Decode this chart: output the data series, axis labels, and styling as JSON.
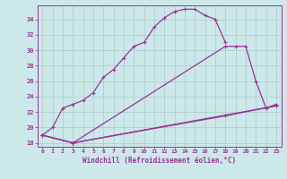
{
  "background_color": "#cce8e8",
  "grid_color": "#aacccc",
  "line_color": "#993399",
  "xlabel": "Windchill (Refroidissement éolien,°C)",
  "ylim": [
    17.5,
    35.8
  ],
  "xlim": [
    -0.5,
    23.5
  ],
  "yticks": [
    18,
    20,
    22,
    24,
    26,
    28,
    30,
    32,
    34
  ],
  "xticks": [
    0,
    1,
    2,
    3,
    4,
    5,
    6,
    7,
    8,
    9,
    10,
    11,
    12,
    13,
    14,
    15,
    16,
    17,
    18,
    19,
    20,
    21,
    22,
    23
  ],
  "series1_x": [
    0,
    1,
    2,
    3,
    4,
    5,
    6,
    7,
    8,
    9,
    10,
    11,
    12,
    13,
    14,
    15,
    16,
    17,
    18
  ],
  "series1_y": [
    19.0,
    20.0,
    22.5,
    23.0,
    23.5,
    24.5,
    26.5,
    27.5,
    29.0,
    30.5,
    31.0,
    33.0,
    34.2,
    35.0,
    35.3,
    35.3,
    34.5,
    34.0,
    31.0
  ],
  "series2_x": [
    0,
    3,
    18,
    19,
    20,
    21,
    22,
    23
  ],
  "series2_y": [
    19.0,
    18.0,
    30.5,
    30.5,
    30.5,
    26.0,
    22.5,
    23.0
  ],
  "series3_x": [
    0,
    3,
    18,
    23
  ],
  "series3_y": [
    19.0,
    18.0,
    21.5,
    22.8
  ],
  "series4_x": [
    0,
    3,
    23
  ],
  "series4_y": [
    19.0,
    18.0,
    22.8
  ]
}
